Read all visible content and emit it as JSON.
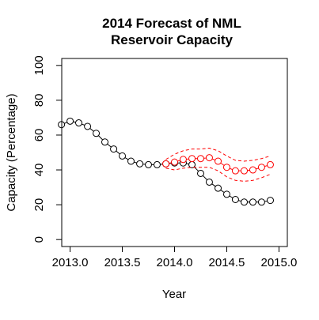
{
  "chart_data": {
    "type": "line",
    "title_lines": [
      "2014 Forecast of NML",
      "Reservoir Capacity"
    ],
    "xlabel": "Year",
    "ylabel": "Capacity (Percentage)",
    "xlim": [
      2012.92,
      2015.08
    ],
    "ylim": [
      -4,
      104
    ],
    "x_ticks": [
      2013.0,
      2013.5,
      2014.0,
      2014.5,
      2015.0
    ],
    "x_tick_labels": [
      "2013.0",
      "2013.5",
      "2014.0",
      "2014.5",
      "2015.0"
    ],
    "y_ticks": [
      0,
      20,
      40,
      60,
      80,
      100
    ],
    "y_tick_labels": [
      "0",
      "20",
      "40",
      "60",
      "80",
      "100"
    ],
    "series": [
      {
        "role": "observed",
        "color": "#000000",
        "marker": "circle",
        "x": [
          2012.917,
          2013.0,
          2013.083,
          2013.167,
          2013.25,
          2013.333,
          2013.417,
          2013.5,
          2013.583,
          2013.667,
          2013.75,
          2013.833,
          2013.917,
          2014.0,
          2014.083,
          2014.167,
          2014.25,
          2014.333,
          2014.417,
          2014.5,
          2014.583,
          2014.667,
          2014.75,
          2014.833,
          2014.917
        ],
        "y": [
          66,
          68,
          67,
          65,
          61,
          56,
          52,
          48,
          45,
          43.5,
          43,
          43,
          43.5,
          44,
          44,
          43,
          38,
          33,
          29.5,
          26,
          23,
          21.5,
          21.5,
          21.5,
          22.5
        ]
      },
      {
        "role": "forecast",
        "color": "#ff0000",
        "marker": "circle",
        "x": [
          2013.917,
          2014.0,
          2014.083,
          2014.167,
          2014.25,
          2014.333,
          2014.417,
          2014.5,
          2014.583,
          2014.667,
          2014.75,
          2014.833,
          2014.917
        ],
        "y": [
          43.5,
          44.5,
          46,
          46.5,
          46.5,
          47,
          45,
          41.5,
          39.5,
          39.5,
          40,
          41.5,
          43
        ]
      },
      {
        "role": "forecast-upper",
        "color": "#ff0000",
        "dashed": true,
        "x": [
          2013.917,
          2014.0,
          2014.083,
          2014.167,
          2014.25,
          2014.333,
          2014.417,
          2014.5,
          2014.583,
          2014.667,
          2014.75,
          2014.833,
          2014.917
        ],
        "y": [
          46,
          49,
          51,
          52,
          52,
          52.5,
          51,
          48,
          45.5,
          45,
          45.5,
          46.5,
          48
        ]
      },
      {
        "role": "forecast-lower",
        "color": "#ff0000",
        "dashed": true,
        "x": [
          2013.917,
          2014.0,
          2014.083,
          2014.167,
          2014.25,
          2014.333,
          2014.417,
          2014.5,
          2014.583,
          2014.667,
          2014.75,
          2014.833,
          2014.917
        ],
        "y": [
          41,
          40,
          41,
          41.5,
          41.5,
          41.5,
          39.5,
          36,
          34,
          33.5,
          34,
          35.5,
          37.5
        ]
      }
    ],
    "grid": false,
    "legend": "none"
  }
}
